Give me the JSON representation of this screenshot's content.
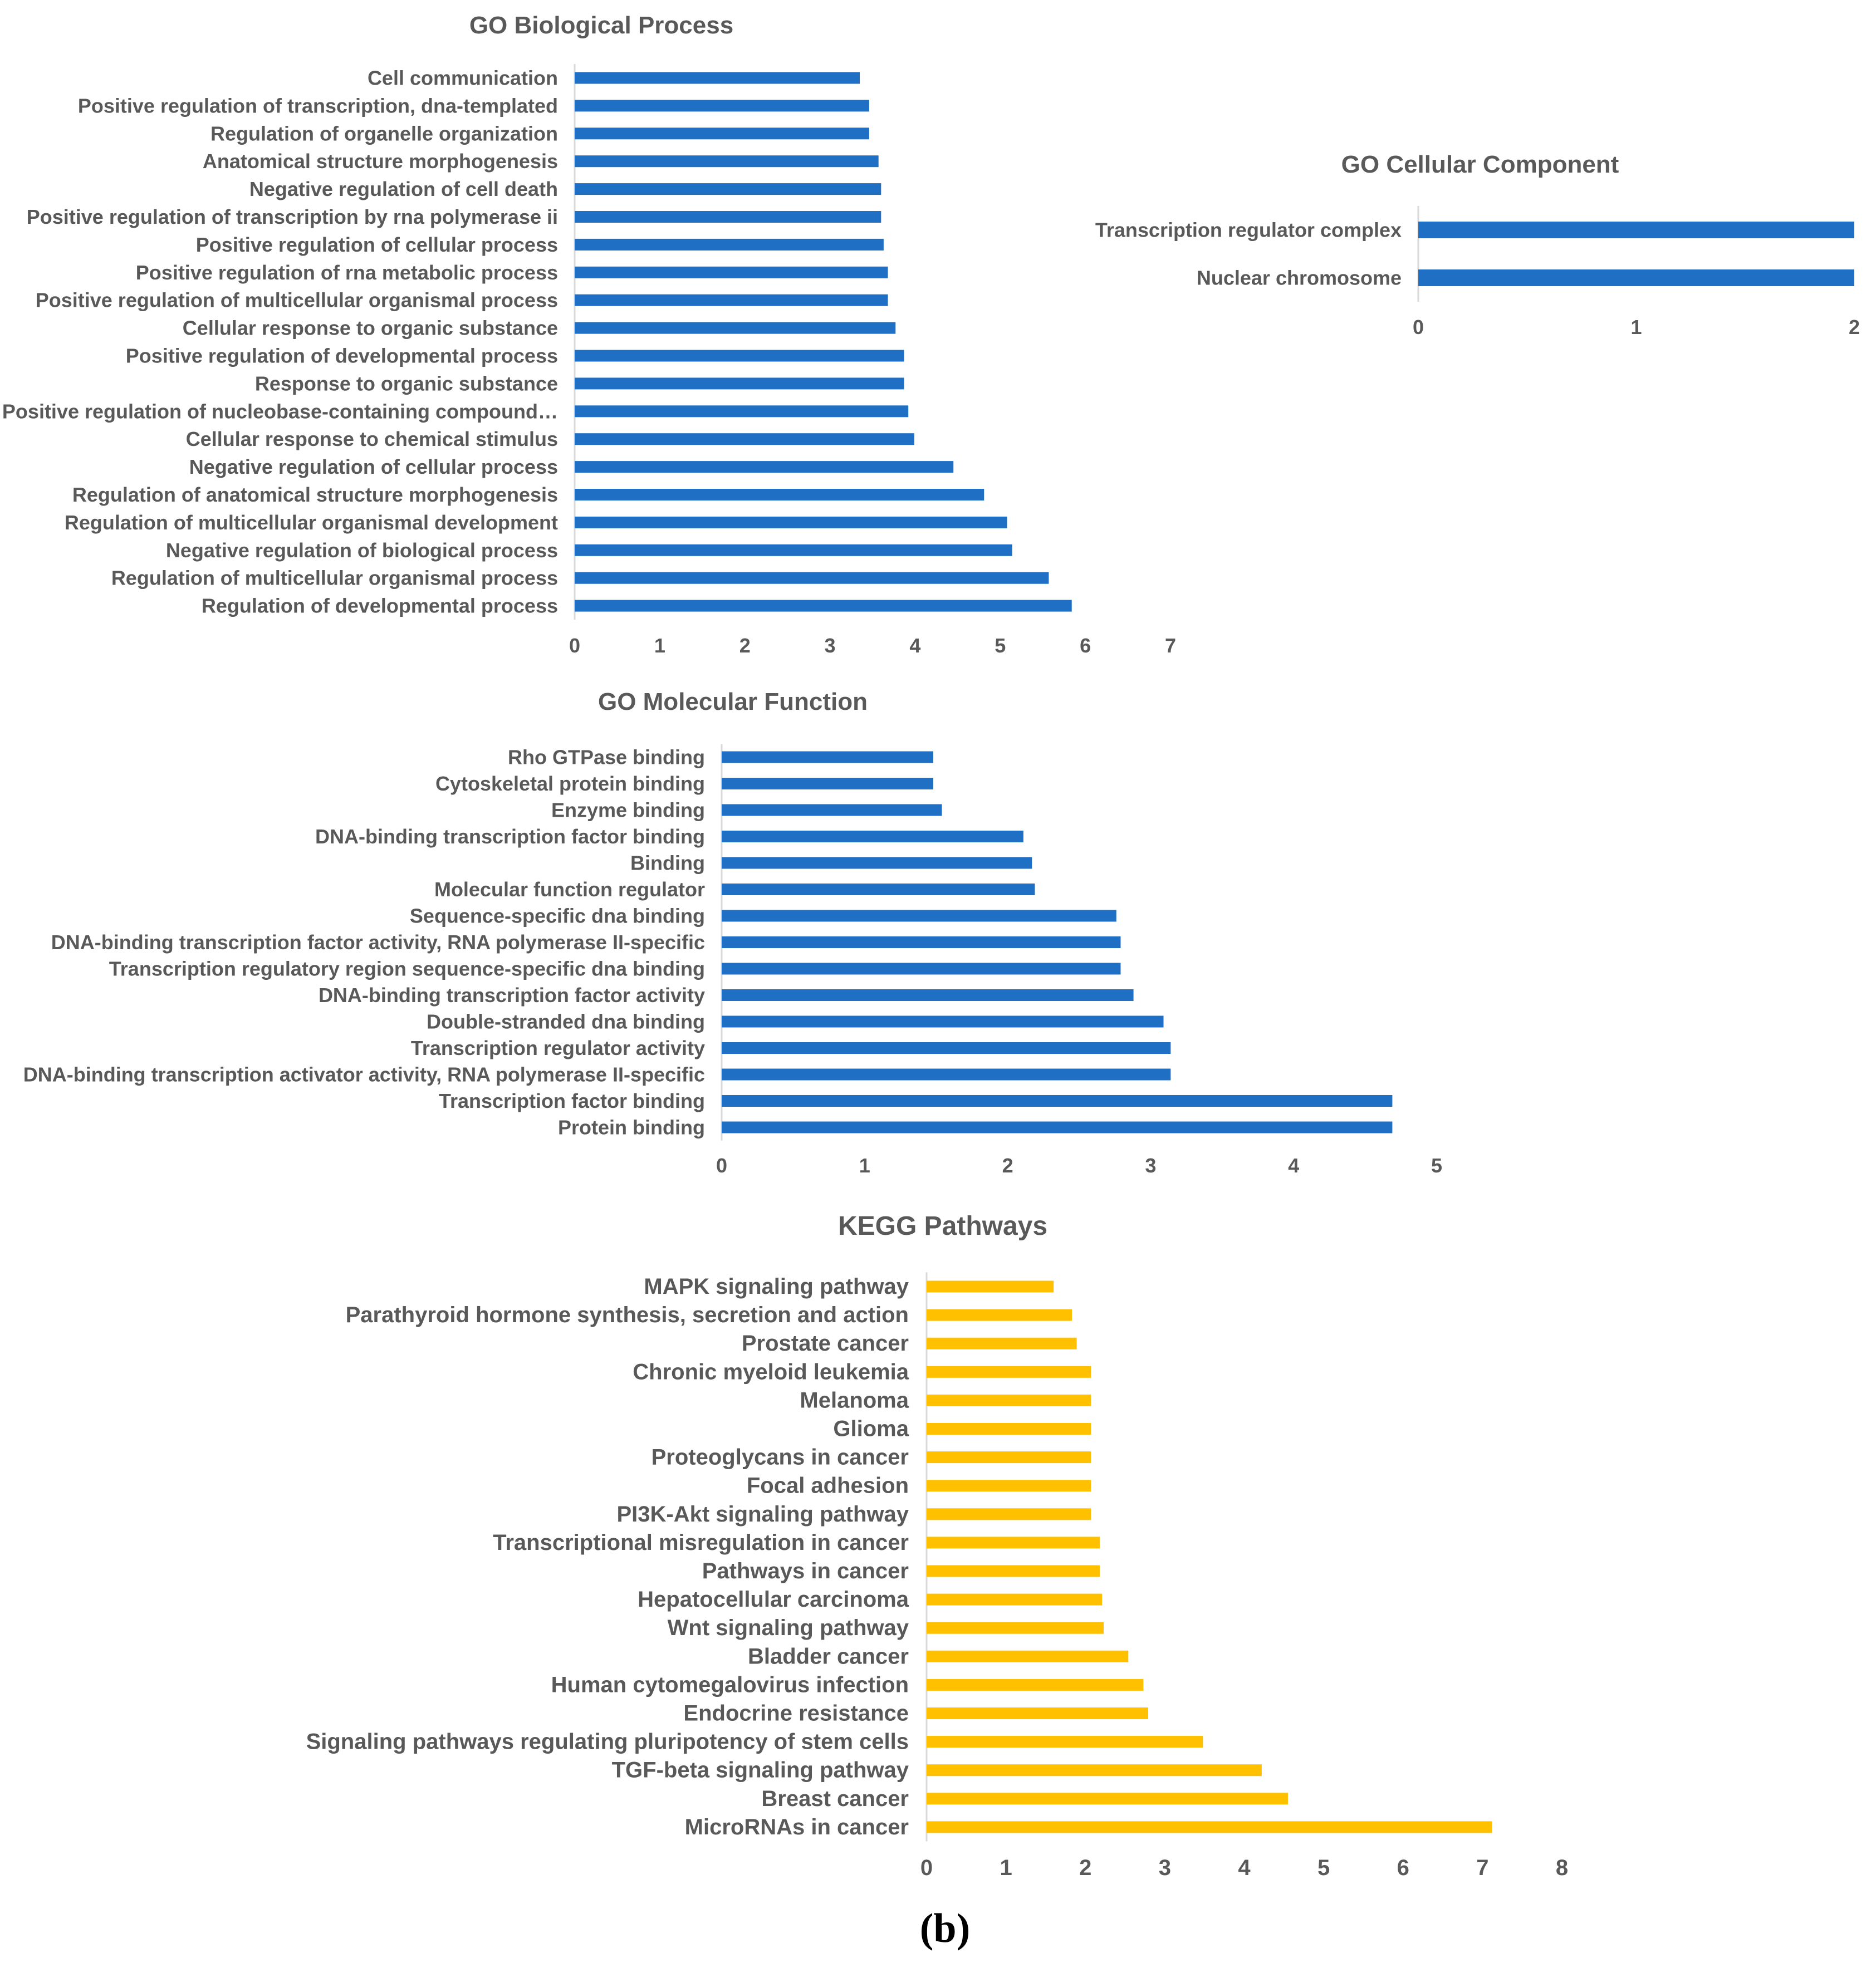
{
  "figure": {
    "panel_label": "(b)"
  },
  "chart_data": [
    {
      "type": "bar",
      "orientation": "horizontal",
      "title": "GO Biological Process",
      "color": "#1f6fc5",
      "xlim": [
        0,
        7
      ],
      "xticks": [
        0,
        1,
        2,
        3,
        4,
        5,
        6,
        7
      ],
      "grid": false,
      "categories": [
        "Cell communication",
        "Positive regulation of transcription, dna-templated",
        "Regulation of organelle organization",
        "Anatomical structure morphogenesis",
        "Negative regulation of cell death",
        "Positive regulation of transcription by rna polymerase ii",
        "Positive regulation of cellular process",
        "Positive regulation of rna metabolic process",
        "Positive regulation of multicellular organismal process",
        "Cellular response to organic substance",
        "Positive regulation of developmental process",
        "Response to organic substance",
        "Positive regulation of nucleobase-containing compound…",
        "Cellular response to chemical stimulus",
        "Negative regulation of cellular process",
        "Regulation of anatomical structure morphogenesis",
        "Regulation of multicellular organismal development",
        "Negative regulation of biological process",
        "Regulation of multicellular organismal process",
        "Regulation of developmental process"
      ],
      "values": [
        3.35,
        3.46,
        3.46,
        3.57,
        3.6,
        3.6,
        3.63,
        3.68,
        3.68,
        3.77,
        3.87,
        3.87,
        3.92,
        3.99,
        4.45,
        4.81,
        5.08,
        5.14,
        5.57,
        5.84
      ]
    },
    {
      "type": "bar",
      "orientation": "horizontal",
      "title": "GO Cellular Component",
      "color": "#1f6fc5",
      "xlim": [
        0,
        2
      ],
      "xticks": [
        0,
        1,
        2
      ],
      "grid": false,
      "categories": [
        "Transcription regulator complex",
        "Nuclear chromosome"
      ],
      "values": [
        2,
        2
      ]
    },
    {
      "type": "bar",
      "orientation": "horizontal",
      "title": "GO Molecular Function",
      "color": "#1f6fc5",
      "xlim": [
        0,
        5
      ],
      "xticks": [
        0,
        1,
        2,
        3,
        4,
        5
      ],
      "grid": false,
      "categories": [
        "Rho GTPase binding",
        "Cytoskeletal protein binding",
        "Enzyme binding",
        "DNA-binding transcription factor binding",
        "Binding",
        "Molecular function regulator",
        "Sequence-specific dna binding",
        "DNA-binding transcription factor activity, RNA polymerase II-specific",
        "Transcription regulatory region sequence-specific dna binding",
        "DNA-binding transcription factor activity",
        "Double-stranded dna binding",
        "Transcription regulator activity",
        "DNA-binding transcription activator activity, RNA polymerase II-specific",
        "Transcription factor binding",
        "Protein binding"
      ],
      "values": [
        1.48,
        1.48,
        1.54,
        2.11,
        2.17,
        2.19,
        2.76,
        2.79,
        2.79,
        2.88,
        3.09,
        3.14,
        3.14,
        4.69,
        4.69
      ]
    },
    {
      "type": "bar",
      "orientation": "horizontal",
      "title": "KEGG Pathways",
      "color": "#ffc000",
      "xlim": [
        0,
        8
      ],
      "xticks": [
        0,
        1,
        2,
        3,
        4,
        5,
        6,
        7,
        8
      ],
      "grid": false,
      "categories": [
        "MAPK signaling pathway",
        "Parathyroid hormone synthesis, secretion and action",
        "Prostate cancer",
        "Chronic myeloid leukemia",
        "Melanoma",
        "Glioma",
        "Proteoglycans in cancer",
        "Focal adhesion",
        "PI3K-Akt signaling pathway",
        "Transcriptional misregulation in cancer",
        "Pathways in cancer",
        "Hepatocellular carcinoma",
        "Wnt signaling pathway",
        "Bladder cancer",
        "Human cytomegalovirus infection",
        "Endocrine resistance",
        "Signaling pathways regulating pluripotency of stem cells",
        "TGF-beta signaling pathway",
        "Breast cancer",
        "MicroRNAs in cancer"
      ],
      "values": [
        1.6,
        1.83,
        1.89,
        2.07,
        2.07,
        2.07,
        2.07,
        2.07,
        2.07,
        2.18,
        2.18,
        2.21,
        2.23,
        2.54,
        2.73,
        2.79,
        3.48,
        4.22,
        4.55,
        7.12
      ]
    }
  ]
}
